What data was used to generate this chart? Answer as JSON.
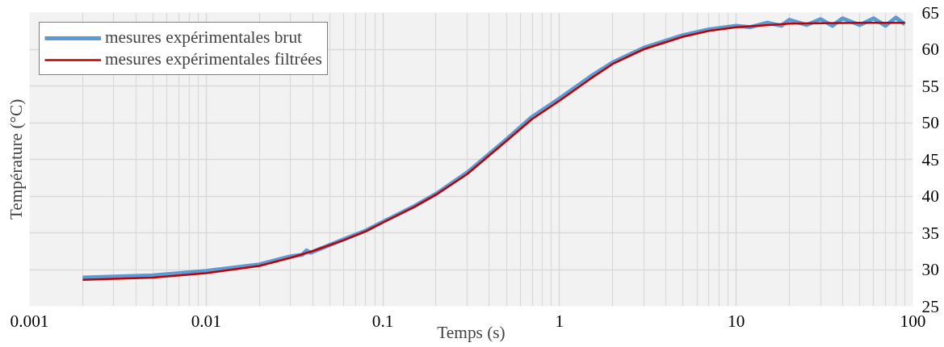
{
  "chart_data": {
    "type": "line",
    "xlabel": "Temps (s)",
    "ylabel": "Température (°C)",
    "log": "x",
    "xlim": [
      0.001,
      100
    ],
    "xticks": [
      0.001,
      0.01,
      0.1,
      1,
      10,
      100
    ],
    "ylim": [
      25,
      65
    ],
    "yticks": [
      25,
      30,
      35,
      40,
      45,
      50,
      55,
      60,
      65
    ],
    "grid": true,
    "legend": "top left",
    "series": [
      {
        "name": "mesures expérimentales brut",
        "color": "#5b9bd5",
        "x": [
          0.002,
          0.005,
          0.01,
          0.02,
          0.03,
          0.035,
          0.037,
          0.039,
          0.045,
          0.06,
          0.08,
          0.1,
          0.15,
          0.2,
          0.3,
          0.5,
          0.7,
          1,
          1.5,
          2,
          3,
          5,
          7,
          10,
          12,
          15,
          18,
          20,
          25,
          30,
          35,
          40,
          50,
          60,
          70,
          80,
          90
        ],
        "values": [
          28.9,
          29.2,
          29.8,
          30.7,
          31.8,
          32.0,
          32.6,
          32.3,
          32.9,
          34.1,
          35.3,
          36.5,
          38.6,
          40.3,
          43.2,
          47.7,
          50.8,
          53.3,
          56.3,
          58.2,
          60.2,
          61.9,
          62.7,
          63.2,
          63.0,
          63.6,
          63.2,
          64.0,
          63.3,
          64.1,
          63.2,
          64.2,
          63.3,
          64.2,
          63.2,
          64.3,
          63.4
        ]
      },
      {
        "name": "mesures expérimentales filtrées",
        "color": "#c00000",
        "x": [
          0.002,
          0.005,
          0.01,
          0.02,
          0.03,
          0.04,
          0.06,
          0.08,
          0.1,
          0.15,
          0.2,
          0.3,
          0.5,
          0.7,
          1,
          1.5,
          2,
          3,
          5,
          7,
          10,
          20,
          50,
          90
        ],
        "values": [
          28.6,
          28.9,
          29.5,
          30.5,
          31.6,
          32.5,
          34.0,
          35.2,
          36.4,
          38.5,
          40.2,
          43.0,
          47.5,
          50.5,
          53.0,
          56.0,
          58.0,
          60.0,
          61.7,
          62.5,
          63.0,
          63.5,
          63.6,
          63.6
        ]
      }
    ]
  }
}
